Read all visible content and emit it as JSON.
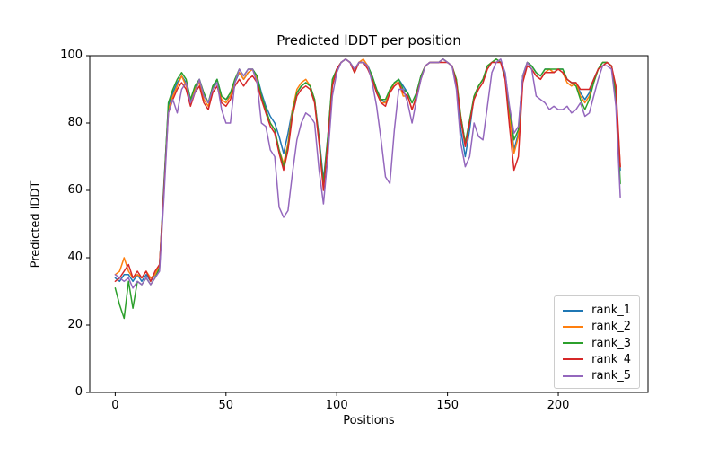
{
  "figure": {
    "background": "#ffffff"
  },
  "chart_data": {
    "type": "line",
    "title": "Predicted lDDT per position",
    "xlabel": "Positions",
    "ylabel": "Predicted lDDT",
    "xlim": [
      -11.5,
      240.5
    ],
    "ylim": [
      0,
      100
    ],
    "x_ticks": [
      0,
      50,
      100,
      150,
      200
    ],
    "y_ticks": [
      0,
      20,
      40,
      60,
      80,
      100
    ],
    "grid": false,
    "legend_position": "lower right",
    "line_width": 1.5,
    "x": [
      0,
      2,
      4,
      6,
      8,
      10,
      12,
      14,
      16,
      18,
      20,
      22,
      24,
      26,
      28,
      30,
      32,
      34,
      36,
      38,
      40,
      42,
      44,
      46,
      48,
      50,
      52,
      54,
      56,
      58,
      60,
      62,
      64,
      66,
      68,
      70,
      72,
      74,
      76,
      78,
      80,
      82,
      84,
      86,
      88,
      90,
      92,
      94,
      96,
      98,
      100,
      102,
      104,
      106,
      108,
      110,
      112,
      114,
      116,
      118,
      120,
      122,
      124,
      126,
      128,
      130,
      132,
      134,
      136,
      138,
      140,
      142,
      144,
      146,
      148,
      150,
      152,
      154,
      156,
      158,
      160,
      162,
      164,
      166,
      168,
      170,
      172,
      174,
      176,
      178,
      180,
      182,
      184,
      186,
      188,
      190,
      192,
      194,
      196,
      198,
      200,
      202,
      204,
      206,
      208,
      210,
      212,
      214,
      216,
      218,
      220,
      222,
      224,
      226,
      228
    ],
    "series": [
      {
        "name": "rank_1",
        "color": "#1f77b4",
        "values": [
          34,
          33,
          35,
          35,
          33,
          35,
          33,
          35,
          33,
          35,
          38,
          62,
          85,
          89,
          92,
          94,
          92,
          86,
          90,
          93,
          88,
          86,
          90,
          93,
          88,
          87,
          88,
          92,
          95,
          93,
          95,
          96,
          94,
          89,
          85,
          82,
          80,
          76,
          71,
          77,
          84,
          89,
          91,
          92,
          91,
          87,
          76,
          63,
          76,
          92,
          96,
          98,
          99,
          98,
          95,
          98,
          98,
          97,
          94,
          90,
          87,
          86,
          89,
          92,
          93,
          91,
          89,
          86,
          89,
          94,
          97,
          98,
          98,
          98,
          99,
          98,
          97,
          92,
          78,
          70,
          78,
          88,
          91,
          93,
          97,
          98,
          99,
          98,
          95,
          84,
          72,
          77,
          94,
          98,
          97,
          95,
          94,
          96,
          96,
          95,
          96,
          96,
          93,
          92,
          92,
          89,
          87,
          89,
          93,
          96,
          98,
          98,
          97,
          89,
          66
        ]
      },
      {
        "name": "rank_2",
        "color": "#ff7f0e",
        "values": [
          35,
          36,
          40,
          36,
          34,
          35,
          34,
          36,
          34,
          35,
          38,
          60,
          84,
          88,
          91,
          94,
          91,
          87,
          90,
          92,
          87,
          85,
          90,
          92,
          87,
          86,
          88,
          93,
          95,
          93,
          95,
          96,
          93,
          88,
          84,
          80,
          78,
          72,
          68,
          74,
          84,
          90,
          92,
          93,
          91,
          87,
          75,
          61,
          75,
          92,
          96,
          98,
          99,
          98,
          95,
          98,
          99,
          97,
          93,
          89,
          86,
          86,
          89,
          92,
          92,
          88,
          88,
          84,
          88,
          94,
          97,
          98,
          98,
          98,
          99,
          98,
          97,
          93,
          82,
          74,
          80,
          88,
          91,
          93,
          97,
          98,
          99,
          98,
          94,
          82,
          71,
          76,
          93,
          98,
          96,
          94,
          93,
          95,
          96,
          95,
          96,
          95,
          92,
          91,
          92,
          88,
          86,
          88,
          92,
          96,
          98,
          98,
          97,
          89,
          67
        ]
      },
      {
        "name": "rank_3",
        "color": "#2ca02c",
        "values": [
          31,
          26,
          22,
          33,
          25,
          33,
          32,
          34,
          32,
          34,
          37,
          61,
          86,
          90,
          93,
          95,
          93,
          87,
          91,
          93,
          89,
          86,
          91,
          93,
          88,
          87,
          89,
          93,
          96,
          94,
          96,
          96,
          94,
          88,
          84,
          80,
          78,
          72,
          67,
          73,
          83,
          89,
          91,
          92,
          91,
          87,
          75,
          62,
          76,
          93,
          96,
          98,
          99,
          98,
          96,
          98,
          98,
          97,
          94,
          90,
          87,
          87,
          90,
          92,
          93,
          90,
          89,
          86,
          89,
          94,
          97,
          98,
          98,
          98,
          99,
          98,
          97,
          93,
          82,
          74,
          81,
          88,
          91,
          93,
          97,
          98,
          99,
          98,
          94,
          84,
          75,
          78,
          94,
          98,
          97,
          95,
          94,
          96,
          96,
          96,
          96,
          96,
          93,
          92,
          91,
          87,
          84,
          87,
          92,
          96,
          98,
          98,
          97,
          88,
          62
        ]
      },
      {
        "name": "rank_4",
        "color": "#d62728",
        "values": [
          33,
          34,
          36,
          38,
          34,
          36,
          34,
          36,
          33,
          36,
          38,
          60,
          83,
          87,
          90,
          92,
          90,
          85,
          89,
          91,
          86,
          84,
          89,
          91,
          86,
          85,
          87,
          91,
          93,
          91,
          93,
          94,
          92,
          87,
          83,
          79,
          77,
          71,
          66,
          72,
          82,
          88,
          90,
          91,
          90,
          86,
          74,
          60,
          74,
          91,
          96,
          98,
          99,
          98,
          95,
          98,
          98,
          96,
          93,
          89,
          86,
          85,
          89,
          91,
          92,
          89,
          88,
          84,
          88,
          93,
          97,
          98,
          98,
          98,
          98,
          98,
          97,
          92,
          81,
          73,
          80,
          87,
          90,
          92,
          96,
          98,
          98,
          98,
          93,
          79,
          66,
          70,
          92,
          97,
          96,
          94,
          93,
          95,
          95,
          95,
          96,
          95,
          93,
          92,
          92,
          90,
          90,
          90,
          93,
          96,
          97,
          98,
          97,
          91,
          67
        ]
      },
      {
        "name": "rank_5",
        "color": "#9467bd",
        "values": [
          35,
          34,
          33,
          34,
          31,
          33,
          32,
          34,
          32,
          34,
          36,
          58,
          83,
          87,
          83,
          90,
          92,
          86,
          89,
          93,
          88,
          86,
          90,
          92,
          84,
          80,
          80,
          92,
          96,
          94,
          96,
          96,
          92,
          80,
          79,
          72,
          70,
          55,
          52,
          54,
          65,
          75,
          80,
          83,
          82,
          80,
          66,
          56,
          70,
          88,
          95,
          98,
          99,
          98,
          96,
          98,
          98,
          97,
          92,
          85,
          75,
          64,
          62,
          78,
          90,
          90,
          86,
          80,
          87,
          93,
          97,
          98,
          98,
          98,
          99,
          98,
          97,
          90,
          74,
          67,
          70,
          80,
          76,
          75,
          85,
          95,
          98,
          99,
          95,
          85,
          77,
          79,
          94,
          98,
          96,
          88,
          87,
          86,
          84,
          85,
          84,
          84,
          85,
          83,
          84,
          86,
          82,
          83,
          88,
          93,
          97,
          97,
          96,
          85,
          58
        ]
      }
    ]
  }
}
